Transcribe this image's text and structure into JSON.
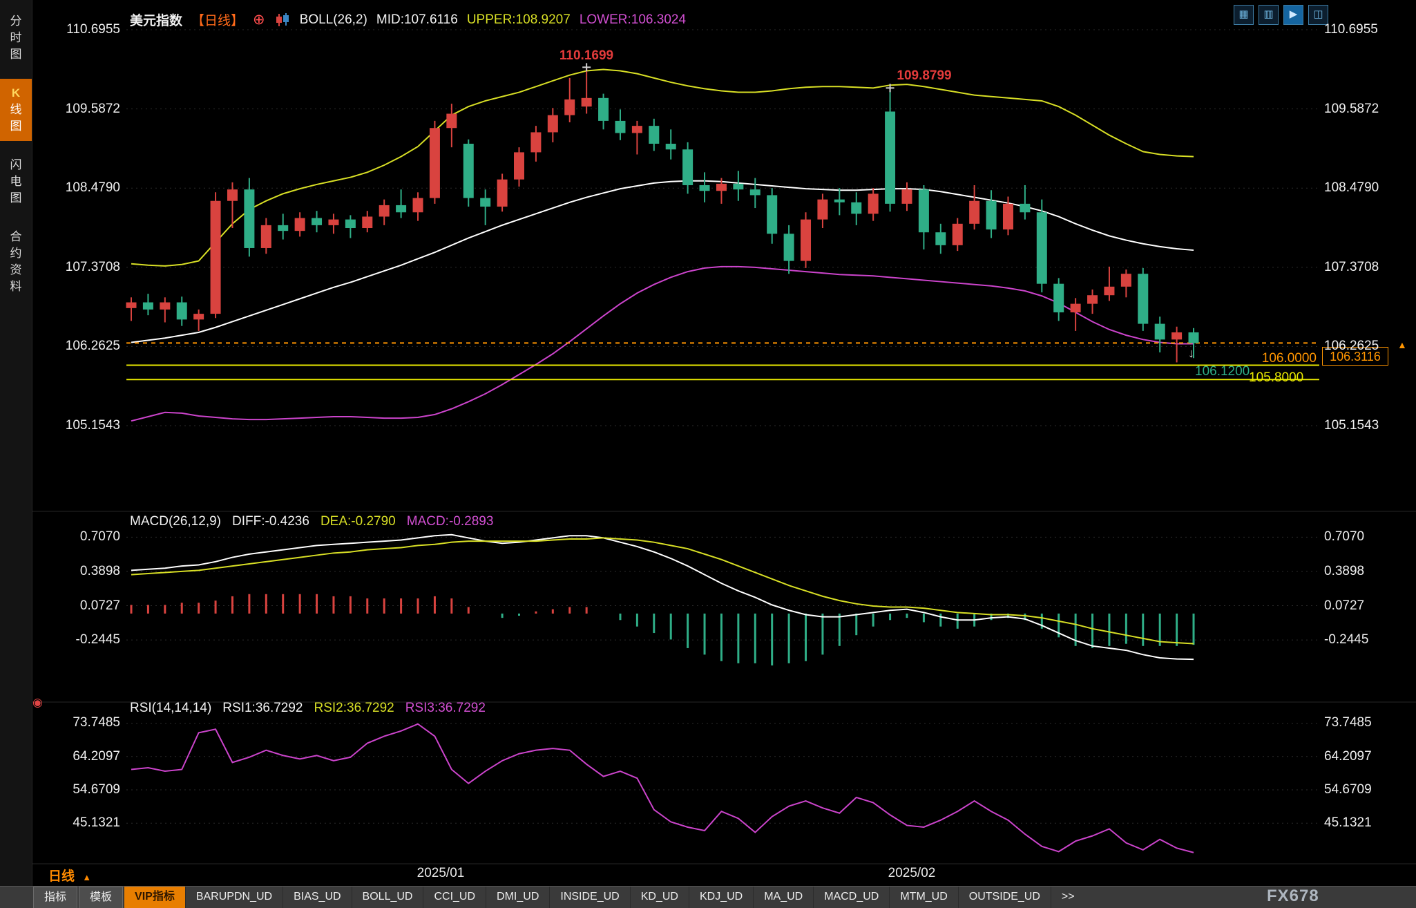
{
  "header": {
    "symbol": "美元指数",
    "period_tag": "【日线】",
    "plus_icon": "⊕",
    "boll": "BOLL(26,2)",
    "mid": "MID:107.6116",
    "upper": "UPPER:108.9207",
    "lower": "LOWER:106.3024"
  },
  "toolbar": {
    "icons": [
      {
        "key": "grid-layout",
        "glyph": "▦"
      },
      {
        "key": "multi-pane",
        "glyph": "▥"
      },
      {
        "key": "active-chart",
        "glyph": "▶",
        "active": true
      },
      {
        "key": "new-window",
        "glyph": "◫"
      }
    ]
  },
  "sidebar": {
    "items": [
      {
        "key": "time-chart",
        "label": "分时图"
      },
      {
        "key": "kline-chart",
        "label_k": "K",
        "label_rest": "线图",
        "active": true
      },
      {
        "key": "flash-chart",
        "label": "闪电图"
      },
      {
        "key": "contract-info",
        "label": "合约资料"
      }
    ]
  },
  "main_chart": {
    "y_labels": [
      "110.6955",
      "109.5872",
      "108.4790",
      "107.3708",
      "106.2625",
      "105.1543"
    ],
    "annotations": [
      {
        "text": "110.1699",
        "candle_index": 27
      },
      {
        "text": "109.8799",
        "candle_index": 45
      }
    ],
    "hlines": [
      {
        "label": "106.0000",
        "price": 106.0,
        "label_color": "#ff9500",
        "line_color": "#e8e800",
        "draw": true
      },
      {
        "label": "106.1200",
        "price": 106.12,
        "label_color": "#2fae87",
        "line_color": "#2fae87",
        "draw": false
      },
      {
        "label": "105.8000",
        "price": 105.8,
        "label_color": "#e8e800",
        "line_color": "#e8e800",
        "draw": true
      }
    ],
    "current_price": "106.3116",
    "edge_arrow": "▲",
    "last_candle_marker": "↓"
  },
  "macd": {
    "title": "MACD(26,12,9)",
    "diff_label": "DIFF:-0.4236",
    "dea_label": "DEA:-0.2790",
    "macd_label": "MACD:-0.2893",
    "y_labels": [
      "0.7070",
      "0.3898",
      "0.0727",
      "-0.2445"
    ]
  },
  "rsi": {
    "title": "RSI(14,14,14)",
    "rsi1": "RSI1:36.7292",
    "rsi2": "RSI2:36.7292",
    "rsi3": "RSI3:36.7292",
    "marker_icon": "◉",
    "y_labels": [
      "73.7485",
      "64.2097",
      "54.6709",
      "45.1321"
    ]
  },
  "x_axis": {
    "period": "日线",
    "period_arrow": "▲",
    "months": [
      "2025/01",
      "2025/02"
    ]
  },
  "watermark": "FX678",
  "footer": {
    "tabs": [
      {
        "key": "indicators",
        "label": "指标",
        "kind": "button"
      },
      {
        "key": "templates",
        "label": "模板",
        "kind": "button"
      },
      {
        "key": "vip-indicators",
        "label": "VIP指标",
        "kind": "vip"
      },
      {
        "key": "barupdn",
        "label": "BARUPDN_UD",
        "kind": "ind"
      },
      {
        "key": "bias",
        "label": "BIAS_UD",
        "kind": "ind"
      },
      {
        "key": "boll",
        "label": "BOLL_UD",
        "kind": "ind"
      },
      {
        "key": "cci",
        "label": "CCI_UD",
        "kind": "ind"
      },
      {
        "key": "dmi",
        "label": "DMI_UD",
        "kind": "ind"
      },
      {
        "key": "inside",
        "label": "INSIDE_UD",
        "kind": "ind"
      },
      {
        "key": "kd",
        "label": "KD_UD",
        "kind": "ind"
      },
      {
        "key": "kdj",
        "label": "KDJ_UD",
        "kind": "ind"
      },
      {
        "key": "ma",
        "label": "MA_UD",
        "kind": "ind"
      },
      {
        "key": "macd",
        "label": "MACD_UD",
        "kind": "ind"
      },
      {
        "key": "mtm",
        "label": "MTM_UD",
        "kind": "ind"
      },
      {
        "key": "outside",
        "label": "OUTSIDE_UD",
        "kind": "ind"
      },
      {
        "key": "more",
        "label": ">>",
        "kind": "more"
      }
    ]
  },
  "chart_data": {
    "type": "candlestick",
    "symbol": "美元指数",
    "period": "日线",
    "x_axis_months": [
      "2025/01",
      "2025/02"
    ],
    "main_ylim": [
      105.1543,
      110.6955
    ],
    "macd_ylim": [
      -0.78,
      0.85
    ],
    "rsi_ylim": [
      35.5,
      77
    ],
    "colors": {
      "up": "#d9433f",
      "down": "#2fae87",
      "boll_upper": "#d8df25",
      "boll_mid": "#ffffff",
      "boll_lower": "#cc44cc",
      "macd_diff": "#ffffff",
      "macd_dea": "#d8df25",
      "rsi_line": "#cc44cc",
      "accent": "#ff9500"
    },
    "boll": {
      "period": 26,
      "width": 2,
      "mid": 107.6116,
      "upper": 108.9207,
      "lower": 106.3024
    },
    "macd_params": {
      "p1": 26,
      "p2": 12,
      "p3": 9,
      "diff": -0.4236,
      "dea": -0.279,
      "macd": -0.2893
    },
    "rsi_params": {
      "p1": 14,
      "p2": 14,
      "p3": 14,
      "rsi1": 36.7292,
      "rsi2": 36.7292,
      "rsi3": 36.7292
    },
    "current_price": 106.3116,
    "hline_prices": [
      106.0,
      106.12,
      105.8
    ],
    "candles": [
      [
        106.8,
        106.95,
        106.62,
        106.88
      ],
      [
        106.88,
        107.0,
        106.7,
        106.78
      ],
      [
        106.78,
        106.95,
        106.6,
        106.88
      ],
      [
        106.88,
        106.96,
        106.55,
        106.64
      ],
      [
        106.64,
        106.78,
        106.48,
        106.72
      ],
      [
        106.72,
        108.42,
        106.66,
        108.3
      ],
      [
        108.3,
        108.56,
        107.92,
        108.46
      ],
      [
        108.46,
        108.62,
        107.52,
        107.64
      ],
      [
        107.64,
        108.06,
        107.56,
        107.96
      ],
      [
        107.96,
        108.12,
        107.76,
        107.88
      ],
      [
        107.88,
        108.14,
        107.8,
        108.06
      ],
      [
        108.06,
        108.16,
        107.86,
        107.96
      ],
      [
        107.96,
        108.12,
        107.84,
        108.04
      ],
      [
        108.04,
        108.1,
        107.78,
        107.92
      ],
      [
        107.92,
        108.16,
        107.86,
        108.08
      ],
      [
        108.08,
        108.32,
        107.96,
        108.24
      ],
      [
        108.24,
        108.46,
        108.06,
        108.14
      ],
      [
        108.14,
        108.42,
        108.02,
        108.34
      ],
      [
        108.34,
        109.42,
        108.26,
        109.32
      ],
      [
        109.32,
        109.66,
        109.05,
        109.52
      ],
      [
        109.1,
        109.16,
        108.22,
        108.34
      ],
      [
        108.34,
        108.46,
        107.96,
        108.22
      ],
      [
        108.22,
        108.68,
        108.15,
        108.6
      ],
      [
        108.6,
        109.05,
        108.5,
        108.98
      ],
      [
        108.98,
        109.35,
        108.85,
        109.26
      ],
      [
        109.26,
        109.6,
        109.12,
        109.5
      ],
      [
        109.5,
        110.02,
        109.4,
        109.72
      ],
      [
        109.62,
        110.17,
        109.52,
        109.74
      ],
      [
        109.74,
        109.8,
        109.3,
        109.42
      ],
      [
        109.42,
        109.58,
        109.15,
        109.25
      ],
      [
        109.25,
        109.42,
        108.95,
        109.35
      ],
      [
        109.35,
        109.45,
        109.0,
        109.1
      ],
      [
        109.1,
        109.3,
        108.88,
        109.02
      ],
      [
        109.02,
        109.12,
        108.4,
        108.52
      ],
      [
        108.52,
        108.7,
        108.28,
        108.44
      ],
      [
        108.44,
        108.62,
        108.26,
        108.54
      ],
      [
        108.54,
        108.72,
        108.3,
        108.46
      ],
      [
        108.46,
        108.62,
        108.2,
        108.38
      ],
      [
        108.38,
        108.48,
        107.7,
        107.84
      ],
      [
        107.84,
        107.96,
        107.28,
        107.46
      ],
      [
        107.46,
        108.14,
        107.36,
        108.04
      ],
      [
        108.04,
        108.4,
        107.92,
        108.32
      ],
      [
        108.32,
        108.48,
        108.1,
        108.28
      ],
      [
        108.28,
        108.42,
        107.96,
        108.12
      ],
      [
        108.12,
        108.48,
        108.02,
        108.4
      ],
      [
        109.55,
        109.88,
        108.15,
        108.26
      ],
      [
        108.26,
        108.56,
        108.16,
        108.46
      ],
      [
        108.46,
        108.52,
        107.62,
        107.86
      ],
      [
        107.86,
        107.98,
        107.56,
        107.68
      ],
      [
        107.68,
        108.06,
        107.6,
        107.98
      ],
      [
        107.98,
        108.52,
        107.9,
        108.3
      ],
      [
        108.3,
        108.45,
        107.78,
        107.9
      ],
      [
        107.9,
        108.36,
        107.82,
        108.26
      ],
      [
        108.26,
        108.52,
        108.04,
        108.14
      ],
      [
        108.14,
        108.32,
        107.02,
        107.14
      ],
      [
        107.14,
        107.22,
        106.62,
        106.74
      ],
      [
        106.74,
        106.94,
        106.48,
        106.86
      ],
      [
        106.86,
        107.06,
        106.72,
        106.98
      ],
      [
        106.98,
        107.38,
        106.9,
        107.1
      ],
      [
        107.1,
        107.34,
        106.95,
        107.28
      ],
      [
        107.28,
        107.36,
        106.48,
        106.58
      ],
      [
        106.58,
        106.68,
        106.18,
        106.36
      ],
      [
        106.36,
        106.54,
        106.04,
        106.46
      ],
      [
        106.46,
        106.52,
        106.1,
        106.31
      ]
    ],
    "boll_upper": [
      107.42,
      107.4,
      107.39,
      107.41,
      107.46,
      107.72,
      107.98,
      108.18,
      108.3,
      108.4,
      108.47,
      108.53,
      108.58,
      108.63,
      108.7,
      108.8,
      108.92,
      109.06,
      109.28,
      109.5,
      109.62,
      109.7,
      109.76,
      109.82,
      109.9,
      109.98,
      110.06,
      110.12,
      110.14,
      110.12,
      110.08,
      110.02,
      109.96,
      109.91,
      109.87,
      109.84,
      109.82,
      109.82,
      109.84,
      109.87,
      109.89,
      109.9,
      109.9,
      109.89,
      109.88,
      109.92,
      109.93,
      109.9,
      109.86,
      109.82,
      109.78,
      109.76,
      109.74,
      109.72,
      109.7,
      109.62,
      109.5,
      109.36,
      109.22,
      109.1,
      108.99,
      108.95,
      108.93,
      108.92
    ],
    "boll_mid": [
      106.32,
      106.35,
      106.38,
      106.42,
      106.46,
      106.53,
      106.61,
      106.69,
      106.77,
      106.85,
      106.93,
      107.01,
      107.09,
      107.16,
      107.24,
      107.32,
      107.4,
      107.49,
      107.58,
      107.68,
      107.78,
      107.87,
      107.96,
      108.04,
      108.12,
      108.2,
      108.28,
      108.35,
      108.41,
      108.47,
      108.51,
      108.55,
      108.57,
      108.58,
      108.58,
      108.57,
      108.55,
      108.53,
      108.51,
      108.49,
      108.47,
      108.46,
      108.45,
      108.45,
      108.46,
      108.47,
      108.47,
      108.46,
      108.43,
      108.39,
      108.35,
      108.31,
      108.27,
      108.22,
      108.16,
      108.08,
      107.98,
      107.89,
      107.81,
      107.75,
      107.7,
      107.66,
      107.63,
      107.61
    ],
    "boll_lower": [
      105.22,
      105.28,
      105.34,
      105.33,
      105.29,
      105.27,
      105.25,
      105.24,
      105.24,
      105.25,
      105.26,
      105.27,
      105.28,
      105.28,
      105.27,
      105.26,
      105.26,
      105.27,
      105.31,
      105.39,
      105.49,
      105.6,
      105.73,
      105.87,
      106.01,
      106.16,
      106.33,
      106.51,
      106.69,
      106.86,
      107.01,
      107.13,
      107.23,
      107.31,
      107.36,
      107.38,
      107.38,
      107.37,
      107.35,
      107.33,
      107.31,
      107.29,
      107.27,
      107.26,
      107.25,
      107.23,
      107.21,
      107.19,
      107.17,
      107.15,
      107.13,
      107.11,
      107.08,
      107.04,
      106.97,
      106.87,
      106.74,
      106.61,
      106.5,
      106.42,
      106.36,
      106.32,
      106.3,
      106.3
    ],
    "macd_diff": [
      0.4,
      0.41,
      0.42,
      0.44,
      0.45,
      0.48,
      0.52,
      0.55,
      0.57,
      0.59,
      0.61,
      0.63,
      0.64,
      0.65,
      0.66,
      0.67,
      0.68,
      0.7,
      0.72,
      0.73,
      0.7,
      0.67,
      0.65,
      0.66,
      0.68,
      0.7,
      0.72,
      0.72,
      0.7,
      0.66,
      0.62,
      0.57,
      0.51,
      0.44,
      0.36,
      0.28,
      0.21,
      0.15,
      0.08,
      0.03,
      -0.01,
      -0.03,
      -0.03,
      -0.01,
      0.01,
      0.03,
      0.04,
      0.01,
      -0.03,
      -0.06,
      -0.06,
      -0.04,
      -0.03,
      -0.05,
      -0.11,
      -0.18,
      -0.25,
      -0.3,
      -0.32,
      -0.34,
      -0.38,
      -0.41,
      -0.42,
      -0.4236
    ],
    "macd_dea": [
      0.36,
      0.37,
      0.38,
      0.39,
      0.4,
      0.42,
      0.44,
      0.46,
      0.48,
      0.5,
      0.52,
      0.54,
      0.56,
      0.57,
      0.59,
      0.6,
      0.61,
      0.63,
      0.64,
      0.66,
      0.67,
      0.67,
      0.67,
      0.67,
      0.67,
      0.68,
      0.69,
      0.69,
      0.7,
      0.69,
      0.68,
      0.66,
      0.63,
      0.6,
      0.55,
      0.5,
      0.44,
      0.38,
      0.32,
      0.26,
      0.21,
      0.16,
      0.12,
      0.09,
      0.07,
      0.06,
      0.06,
      0.05,
      0.03,
      0.01,
      0.0,
      -0.01,
      -0.01,
      -0.02,
      -0.04,
      -0.07,
      -0.1,
      -0.14,
      -0.17,
      -0.2,
      -0.23,
      -0.26,
      -0.27,
      -0.279
    ],
    "rsi": [
      60.5,
      61.0,
      60.0,
      60.5,
      71.0,
      72.0,
      62.5,
      64.0,
      66.0,
      64.5,
      63.5,
      64.5,
      63.0,
      64.0,
      68.0,
      70.0,
      71.5,
      73.5,
      70.0,
      60.5,
      56.5,
      60.0,
      63.0,
      65.0,
      66.0,
      66.5,
      66.0,
      62.0,
      58.5,
      60.0,
      58.0,
      49.0,
      45.5,
      44.0,
      43.0,
      48.5,
      46.5,
      42.5,
      47.0,
      50.0,
      51.5,
      49.5,
      48.0,
      52.5,
      51.0,
      47.5,
      44.5,
      44.0,
      46.0,
      48.5,
      51.5,
      48.5,
      46.0,
      42.0,
      38.5,
      37.0,
      40.0,
      41.5,
      43.5,
      39.5,
      37.5,
      40.5,
      38.0,
      36.73
    ]
  }
}
